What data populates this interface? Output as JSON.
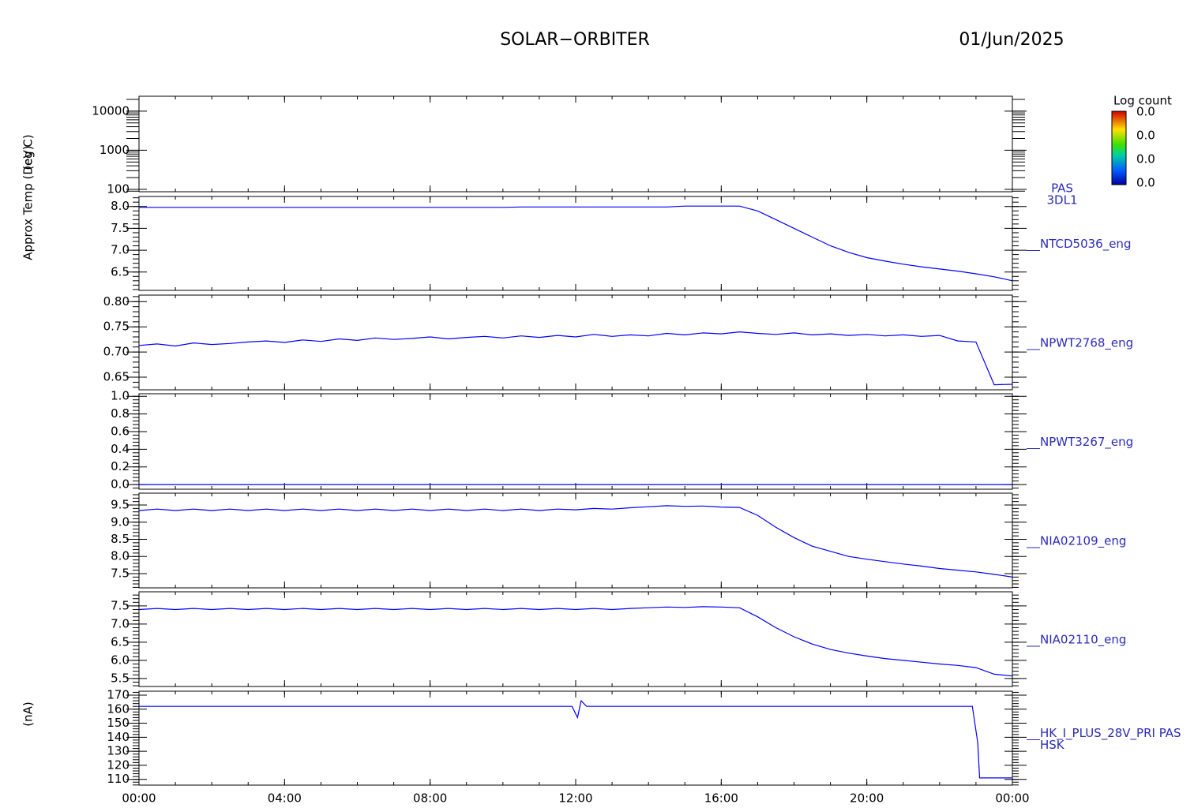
{
  "header": {
    "title": "SOLAR−ORBITER",
    "date": "01/Jun/2025"
  },
  "colorbar": {
    "title": "Log count",
    "labels": [
      "0.0",
      "0.0",
      "0.0",
      "0.0"
    ]
  },
  "chart_data": [
    {
      "type": "line",
      "ylabel": "(eV)",
      "label": [
        "PAS",
        "3DL1"
      ],
      "log": true,
      "xlim": [
        0,
        24
      ],
      "ylim": [
        87,
        24000
      ],
      "yticks": [
        100,
        1000,
        10000
      ],
      "x": [],
      "series": [
        {
          "color": "#0000ff",
          "values": []
        }
      ]
    },
    {
      "type": "line",
      "ylabel": "Approx Temp (Deg C)",
      "label": [
        "NTCD5036_eng"
      ],
      "xlim": [
        0,
        24
      ],
      "ylim": [
        6.08,
        8.23
      ],
      "yticks": [
        {
          "value": 8,
          "label": "8.0"
        },
        7.5,
        {
          "value": 7,
          "label": "7.0"
        },
        6.5
      ],
      "x": [
        0,
        0.5,
        1,
        1.5,
        2,
        2.5,
        3,
        3.5,
        4,
        4.5,
        5,
        5.5,
        6,
        6.5,
        7,
        7.5,
        8,
        8.5,
        9,
        9.5,
        10,
        10.5,
        11,
        11.5,
        12,
        12.5,
        13,
        13.5,
        14,
        14.5,
        15,
        15.5,
        16,
        16.5,
        17,
        17.5,
        18,
        18.5,
        19,
        19.5,
        20,
        20.5,
        21,
        21.5,
        22,
        22.5,
        23,
        23.5,
        24
      ],
      "series": [
        {
          "color": "#0000ff",
          "values": [
            7.98,
            7.98,
            7.98,
            7.98,
            7.98,
            7.98,
            7.98,
            7.98,
            7.98,
            7.98,
            7.98,
            7.98,
            7.98,
            7.98,
            7.98,
            7.98,
            7.98,
            7.98,
            7.98,
            7.98,
            7.98,
            7.99,
            7.99,
            7.99,
            7.99,
            7.99,
            7.99,
            7.99,
            7.99,
            7.99,
            8.01,
            8.01,
            8.01,
            8.01,
            7.9,
            7.7,
            7.5,
            7.3,
            7.1,
            6.95,
            6.83,
            6.75,
            6.68,
            6.62,
            6.57,
            6.52,
            6.46,
            6.39,
            6.3
          ]
        }
      ]
    },
    {
      "type": "line",
      "label": [
        "NPWT2768_eng"
      ],
      "xlim": [
        0,
        24
      ],
      "ylim": [
        0.625,
        0.813
      ],
      "yticks": [
        {
          "value": 0.8,
          "label": "0.80"
        },
        0.75,
        {
          "value": 0.7,
          "label": "0.70"
        },
        0.65
      ],
      "x": [
        0,
        0.5,
        1,
        1.5,
        2,
        2.5,
        3,
        3.5,
        4,
        4.5,
        5,
        5.5,
        6,
        6.5,
        7,
        7.5,
        8,
        8.5,
        9,
        9.5,
        10,
        10.5,
        11,
        11.5,
        12,
        12.5,
        13,
        13.5,
        14,
        14.5,
        15,
        15.5,
        16,
        16.5,
        17,
        17.5,
        18,
        18.5,
        19,
        19.5,
        20,
        20.5,
        21,
        21.5,
        22,
        22.5,
        23,
        23.5,
        24
      ],
      "series": [
        {
          "color": "#0000ff",
          "values": [
            0.713,
            0.716,
            0.712,
            0.718,
            0.715,
            0.717,
            0.72,
            0.722,
            0.719,
            0.724,
            0.721,
            0.726,
            0.723,
            0.728,
            0.725,
            0.727,
            0.73,
            0.726,
            0.729,
            0.731,
            0.728,
            0.732,
            0.729,
            0.733,
            0.73,
            0.735,
            0.731,
            0.734,
            0.732,
            0.737,
            0.734,
            0.738,
            0.736,
            0.74,
            0.737,
            0.735,
            0.738,
            0.734,
            0.736,
            0.733,
            0.735,
            0.732,
            0.734,
            0.731,
            0.733,
            0.722,
            0.72,
            0.635,
            0.636
          ]
        }
      ]
    },
    {
      "type": "line",
      "label": [
        "NPWT3267_eng"
      ],
      "xlim": [
        0,
        24
      ],
      "ylim": [
        -0.053,
        1.029
      ],
      "yticks": [
        {
          "value": 1,
          "label": "1.0"
        },
        0.8,
        0.6,
        0.4,
        0.2,
        {
          "value": 0,
          "label": "0.0"
        }
      ],
      "x": [
        0,
        24
      ],
      "series": [
        {
          "color": "#0000ff",
          "values": [
            0,
            0
          ]
        }
      ]
    },
    {
      "type": "line",
      "label": [
        "NIA02109_eng"
      ],
      "xlim": [
        0,
        24
      ],
      "ylim": [
        7.086,
        9.845
      ],
      "yticks": [
        9.5,
        {
          "value": 9,
          "label": "9.0"
        },
        8.5,
        {
          "value": 8,
          "label": "8.0"
        },
        7.5
      ],
      "x": [
        0,
        0.5,
        1,
        1.5,
        2,
        2.5,
        3,
        3.5,
        4,
        4.5,
        5,
        5.5,
        6,
        6.5,
        7,
        7.5,
        8,
        8.5,
        9,
        9.5,
        10,
        10.5,
        11,
        11.5,
        12,
        12.5,
        13,
        13.5,
        14,
        14.5,
        15,
        15.5,
        16,
        16.5,
        17,
        17.5,
        18,
        18.5,
        19,
        19.5,
        20,
        20.5,
        21,
        21.5,
        22,
        22.5,
        23,
        23.5,
        24
      ],
      "series": [
        {
          "color": "#0000ff",
          "values": [
            9.34,
            9.38,
            9.34,
            9.38,
            9.34,
            9.38,
            9.34,
            9.38,
            9.34,
            9.38,
            9.34,
            9.38,
            9.34,
            9.38,
            9.34,
            9.38,
            9.34,
            9.38,
            9.34,
            9.38,
            9.34,
            9.38,
            9.34,
            9.38,
            9.36,
            9.4,
            9.38,
            9.42,
            9.45,
            9.48,
            9.46,
            9.47,
            9.44,
            9.43,
            9.2,
            8.85,
            8.55,
            8.3,
            8.15,
            8.0,
            7.92,
            7.85,
            7.78,
            7.72,
            7.65,
            7.6,
            7.55,
            7.48,
            7.4
          ]
        }
      ]
    },
    {
      "type": "line",
      "label": [
        "NIA02110_eng"
      ],
      "xlim": [
        0,
        24
      ],
      "ylim": [
        5.28,
        7.89
      ],
      "yticks": [
        7.5,
        {
          "value": 7,
          "label": "7.0"
        },
        6.5,
        {
          "value": 6,
          "label": "6.0"
        },
        5.5
      ],
      "x": [
        0,
        0.5,
        1,
        1.5,
        2,
        2.5,
        3,
        3.5,
        4,
        4.5,
        5,
        5.5,
        6,
        6.5,
        7,
        7.5,
        8,
        8.5,
        9,
        9.5,
        10,
        10.5,
        11,
        11.5,
        12,
        12.5,
        13,
        13.5,
        14,
        14.5,
        15,
        15.5,
        16,
        16.5,
        17,
        17.5,
        18,
        18.5,
        19,
        19.5,
        20,
        20.5,
        21,
        21.5,
        22,
        22.5,
        23,
        23.5,
        24
      ],
      "series": [
        {
          "color": "#0000ff",
          "values": [
            7.4,
            7.43,
            7.4,
            7.43,
            7.4,
            7.43,
            7.4,
            7.43,
            7.4,
            7.43,
            7.4,
            7.43,
            7.4,
            7.43,
            7.4,
            7.43,
            7.4,
            7.43,
            7.4,
            7.43,
            7.4,
            7.43,
            7.4,
            7.43,
            7.4,
            7.43,
            7.4,
            7.43,
            7.45,
            7.47,
            7.46,
            7.48,
            7.47,
            7.45,
            7.2,
            6.9,
            6.65,
            6.45,
            6.3,
            6.2,
            6.12,
            6.05,
            6.0,
            5.95,
            5.9,
            5.86,
            5.8,
            5.62,
            5.57
          ]
        }
      ]
    },
    {
      "type": "line",
      "ylabel": "(nA)",
      "label": [
        "HK_I_PLUS_28V_PRI PAS",
        "HSK"
      ],
      "xlim": [
        0,
        24
      ],
      "ylim": [
        105.9,
        172.8
      ],
      "yticks": [
        170,
        160,
        150,
        140,
        130,
        120,
        110
      ],
      "xticks": [
        {
          "value": 0,
          "label": "00:00"
        },
        {
          "value": 4,
          "label": "04:00"
        },
        {
          "value": 8,
          "label": "08:00"
        },
        {
          "value": 12,
          "label": "12:00"
        },
        {
          "value": 16,
          "label": "16:00"
        },
        {
          "value": 20,
          "label": "20:00"
        },
        {
          "value": 24,
          "label": "00:00"
        }
      ],
      "x": [
        0,
        4,
        8,
        11.9,
        12.05,
        12.15,
        12.3,
        16,
        20,
        22.9,
        23.05,
        23.1,
        24
      ],
      "series": [
        {
          "color": "#0000ff",
          "values": [
            162,
            162,
            162,
            162,
            154,
            166,
            162,
            162,
            162,
            162,
            136,
            111,
            111
          ]
        }
      ]
    }
  ]
}
